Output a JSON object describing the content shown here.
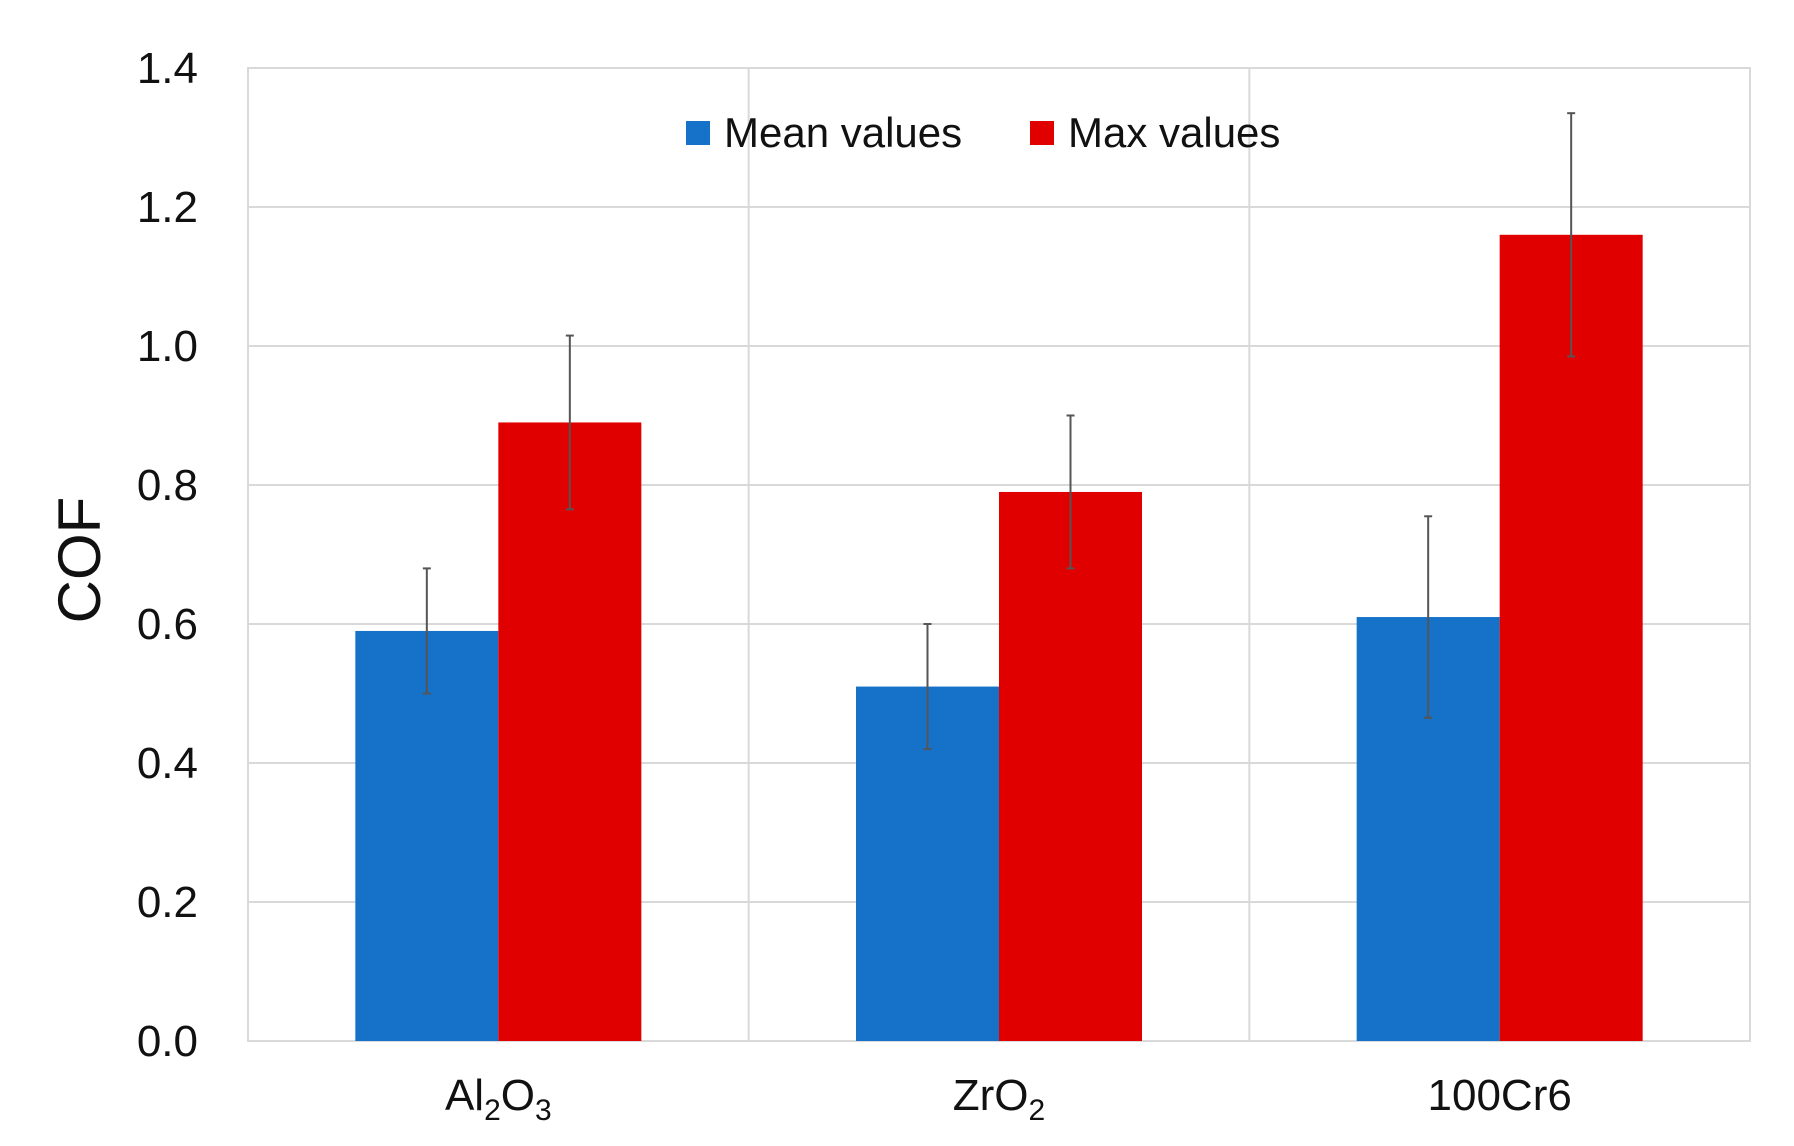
{
  "chart_data": {
    "type": "bar",
    "title": "",
    "xlabel": "",
    "ylabel": "COF",
    "ylim": [
      0,
      1.4
    ],
    "yticks": [
      "0.0",
      "0.2",
      "0.4",
      "0.6",
      "0.8",
      "1.0",
      "1.2",
      "1.4"
    ],
    "grid": true,
    "legend_position": "top-center",
    "categories": [
      {
        "base": "Al",
        "sub1": "2",
        "mid": "O",
        "sub2": "3"
      },
      {
        "base": "ZrO",
        "sub1": "2",
        "mid": "",
        "sub2": ""
      },
      {
        "base": "100Cr6",
        "sub1": "",
        "mid": "",
        "sub2": ""
      }
    ],
    "category_names": [
      "Al2O3",
      "ZrO2",
      "100Cr6"
    ],
    "series": [
      {
        "name": "Mean values",
        "color": "#1572C8",
        "values": [
          0.59,
          0.51,
          0.61
        ],
        "errors": [
          0.09,
          0.09,
          0.145
        ]
      },
      {
        "name": "Max values",
        "color": "#E00000",
        "values": [
          0.89,
          0.79,
          1.16
        ],
        "errors": [
          0.125,
          0.11,
          0.175
        ]
      }
    ]
  }
}
